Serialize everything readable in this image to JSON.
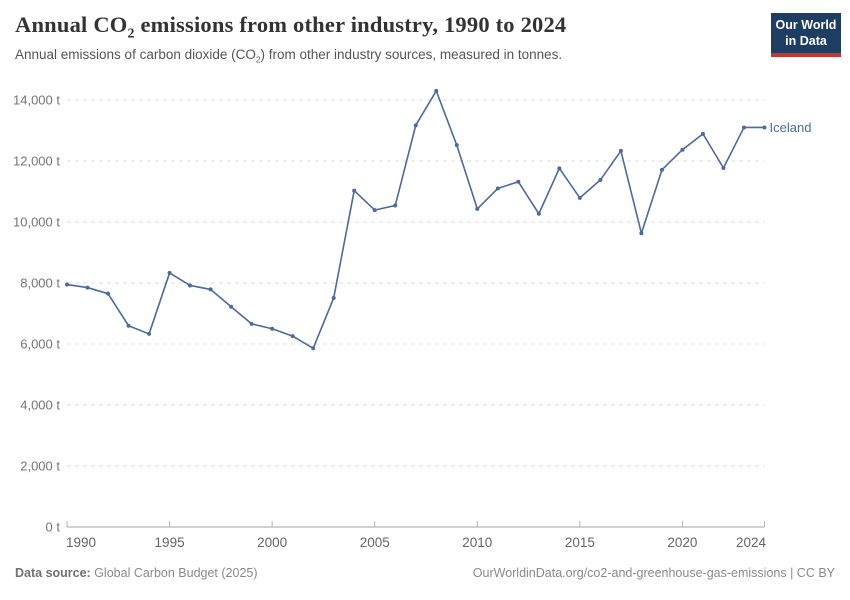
{
  "header": {
    "title": {
      "pre": "Annual CO",
      "sub": "2",
      "post": " emissions from other industry, 1990 to 2024"
    },
    "subtitle": {
      "pre": "Annual emissions of carbon dioxide (CO",
      "sub": "2",
      "post": ") from other industry sources, measured in tonnes."
    },
    "logo": {
      "line1": "Our World",
      "line2": "in Data",
      "bg_color": "#1d3d63",
      "accent_color": "#cc352c"
    }
  },
  "chart_data": {
    "type": "line",
    "title": "Annual CO2 emissions from other industry, 1990 to 2024",
    "xlabel": "",
    "ylabel": "",
    "xlim": [
      1990,
      2024
    ],
    "ylim": [
      0,
      14000
    ],
    "grid": "horizontal-dashed",
    "legend_position": "end-of-line",
    "x_ticks": [
      1990,
      1995,
      2000,
      2005,
      2010,
      2015,
      2020,
      2024
    ],
    "y_ticks": [
      0,
      2000,
      4000,
      6000,
      8000,
      10000,
      12000,
      14000
    ],
    "y_tick_suffix": " t",
    "series": [
      {
        "name": "Iceland",
        "color": "#4c6a9c",
        "x": [
          1990,
          1991,
          1992,
          1993,
          1994,
          1995,
          1996,
          1997,
          1998,
          1999,
          2000,
          2001,
          2002,
          2003,
          2004,
          2005,
          2006,
          2007,
          2008,
          2009,
          2010,
          2011,
          2012,
          2013,
          2014,
          2015,
          2016,
          2017,
          2018,
          2019,
          2020,
          2021,
          2022,
          2023,
          2024
        ],
        "values": [
          7950,
          7850,
          7650,
          6600,
          6330,
          8330,
          7920,
          7790,
          7220,
          6660,
          6500,
          6260,
          5860,
          7510,
          11030,
          10390,
          10540,
          13170,
          14300,
          12520,
          10430,
          11100,
          11320,
          10270,
          11760,
          10790,
          11380,
          12330,
          9630,
          11710,
          12370,
          12890,
          11770,
          13100,
          13100
        ]
      }
    ]
  },
  "footer": {
    "datasource_label": "Data source:",
    "datasource_value": " Global Carbon Budget (2025)",
    "link": "OurWorldinData.org/co2-and-greenhouse-gas-emissions",
    "license_suffix": " | CC BY"
  }
}
